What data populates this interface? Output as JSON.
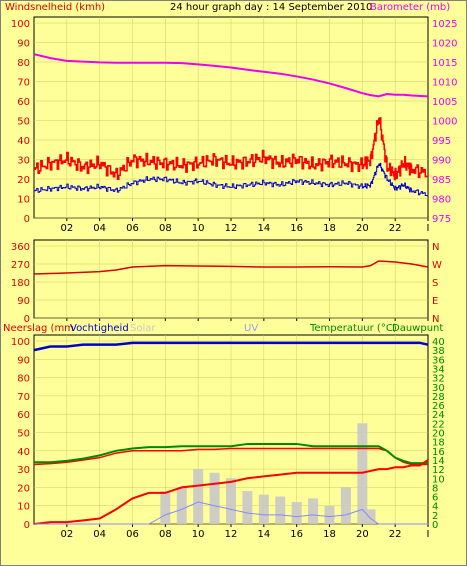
{
  "title": "24 hour graph day : 14 September 2010",
  "colors": {
    "background": "#ffff99",
    "wind": "#dd0000",
    "barometer": "#ee00ee",
    "gust": "#ff0000",
    "average": "#0000cc",
    "rain": "#ff0000",
    "humidity": "#0000cc",
    "solar": "#c8c8c8",
    "uv": "#8888ff",
    "temperature": "#ff0000",
    "dewpoint": "#008800",
    "green_axis": "#008800"
  },
  "x_ticks": [
    "02",
    "04",
    "06",
    "08",
    "10",
    "12",
    "14",
    "16",
    "18",
    "20",
    "22",
    "I"
  ],
  "chart_data": [
    {
      "type": "line",
      "panel": "wind-barometer",
      "left_label": "Windsnelheid (kmh)",
      "right_label": "Barometer (mb)",
      "left_ticks": [
        "100",
        "90",
        "80",
        "70",
        "60",
        "50",
        "40",
        "30",
        "20",
        "10",
        "0"
      ],
      "right_ticks": [
        "1025",
        "1020",
        "1015",
        "1010",
        "1005",
        "1000",
        "995",
        "990",
        "985",
        "980",
        "975"
      ],
      "ylim_left": [
        0,
        100
      ],
      "ylim_right": [
        975,
        1025
      ],
      "x": [
        0,
        1,
        2,
        3,
        4,
        5,
        6,
        7,
        8,
        9,
        10,
        11,
        12,
        13,
        14,
        15,
        16,
        17,
        18,
        19,
        20,
        20.5,
        21,
        21.5,
        22,
        22.5,
        23,
        24
      ],
      "series": [
        {
          "name": "Barometer",
          "axis": "right",
          "values": [
            1017,
            1016,
            1015.3,
            1015.1,
            1014.9,
            1014.8,
            1014.8,
            1014.8,
            1014.8,
            1014.7,
            1014.4,
            1014.0,
            1013.6,
            1013.0,
            1012.5,
            1012.0,
            1011.3,
            1010.5,
            1009.5,
            1008.3,
            1007.0,
            1006.5,
            1006.2,
            1006.8,
            1006.6,
            1006.6,
            1006.4,
            1006.2
          ]
        },
        {
          "name": "Windstoot",
          "axis": "left",
          "values": [
            25,
            28,
            30,
            26,
            28,
            22,
            30,
            29,
            28,
            27,
            28,
            30,
            28,
            29,
            31,
            28,
            30,
            27,
            29,
            28,
            27,
            30,
            52,
            26,
            22,
            28,
            25,
            23
          ]
        },
        {
          "name": "Gemiddeld",
          "axis": "left",
          "values": [
            14,
            15,
            16,
            15,
            16,
            14,
            18,
            20,
            20,
            18,
            19,
            17,
            16,
            17,
            18,
            17,
            19,
            18,
            17,
            18,
            16,
            17,
            28,
            20,
            15,
            17,
            14,
            12
          ]
        }
      ]
    },
    {
      "type": "line",
      "panel": "wind-direction",
      "left_ticks": [
        "360",
        "270",
        "180",
        "90",
        "0"
      ],
      "right_ticks": [
        "N",
        "W",
        "S",
        "E",
        "N"
      ],
      "ylim": [
        0,
        360
      ],
      "x": [
        0,
        2,
        4,
        5,
        6,
        8,
        10,
        12,
        14,
        16,
        18,
        20,
        20.5,
        21,
        22,
        23,
        24
      ],
      "series": [
        {
          "name": "Windrichting",
          "values": [
            220,
            225,
            232,
            240,
            255,
            262,
            260,
            258,
            255,
            255,
            256,
            255,
            262,
            285,
            280,
            270,
            255
          ]
        }
      ]
    },
    {
      "type": "line",
      "panel": "rain-humidity-temperature",
      "left_label": "Neerslag (mm",
      "left_label2": "Vochtigheid",
      "solar_label": "Solar",
      "uv_label": "UV",
      "right_label": "Temperatuur (°C)",
      "right_label2": "Dauwpunt",
      "left_ticks": [
        "100",
        "90",
        "80",
        "70",
        "60",
        "50",
        "40",
        "30",
        "20",
        "10",
        "0"
      ],
      "right_ticks": [
        "40",
        "38",
        "36",
        "34",
        "32",
        "30",
        "28",
        "26",
        "24",
        "22",
        "20",
        "18",
        "16",
        "14",
        "12",
        "10",
        "8",
        "6",
        "4",
        "2",
        "0"
      ],
      "ylim_left": [
        0,
        100
      ],
      "ylim_right": [
        0,
        40
      ],
      "x": [
        0,
        1,
        2,
        3,
        4,
        5,
        6,
        7,
        8,
        9,
        10,
        11,
        12,
        13,
        14,
        15,
        16,
        17,
        18,
        19,
        20,
        20.5,
        21,
        21.5,
        22,
        22.5,
        23,
        23.5,
        24
      ],
      "series": [
        {
          "name": "Vochtigheid",
          "axis": "left",
          "values": [
            95,
            97,
            97,
            98,
            98,
            98,
            99,
            99,
            99,
            99,
            99,
            99,
            99,
            99,
            99,
            99,
            99,
            99,
            99,
            99,
            99,
            99,
            99,
            99,
            99,
            99,
            99,
            99,
            98
          ]
        },
        {
          "name": "Temperatuur",
          "axis": "right",
          "values": [
            13,
            13.2,
            13.5,
            14,
            14.5,
            15.5,
            16,
            16,
            16,
            16,
            16.3,
            16.3,
            16.5,
            16.5,
            16.5,
            16.5,
            16.5,
            16.5,
            16.5,
            16.5,
            16.5,
            16.5,
            16.5,
            16,
            14.5,
            13.5,
            13,
            13,
            13
          ]
        },
        {
          "name": "Dauwpunt",
          "axis": "right",
          "values": [
            13.5,
            13.5,
            13.8,
            14.3,
            15,
            16,
            16.5,
            16.8,
            16.8,
            17,
            17,
            17,
            17,
            17.5,
            17.5,
            17.5,
            17.5,
            17,
            17,
            17,
            17,
            17,
            17,
            16,
            14.5,
            13.8,
            13.3,
            13.3,
            13.3
          ]
        },
        {
          "name": "Neerslag",
          "axis": "left",
          "values": [
            0,
            1,
            1,
            2,
            3,
            8,
            14,
            17,
            17,
            20,
            21,
            22,
            23,
            25,
            26,
            27,
            28,
            28,
            28,
            28,
            28,
            29,
            30,
            30,
            31,
            31,
            32,
            32,
            35
          ]
        },
        {
          "name": "Solar",
          "axis": "left",
          "values": [
            0,
            0,
            0,
            0,
            0,
            0,
            0,
            0,
            18,
            20,
            30,
            28,
            25,
            18,
            16,
            15,
            12,
            14,
            10,
            20,
            55,
            8,
            0,
            0,
            0,
            0,
            0,
            0,
            0
          ]
        },
        {
          "name": "UV",
          "axis": "left",
          "values": [
            0,
            0,
            0,
            0,
            0,
            0,
            0,
            0,
            5,
            8,
            12,
            10,
            8,
            6,
            5,
            5,
            4,
            5,
            4,
            5,
            8,
            3,
            0,
            0,
            0,
            0,
            0,
            0,
            0
          ]
        }
      ]
    }
  ]
}
